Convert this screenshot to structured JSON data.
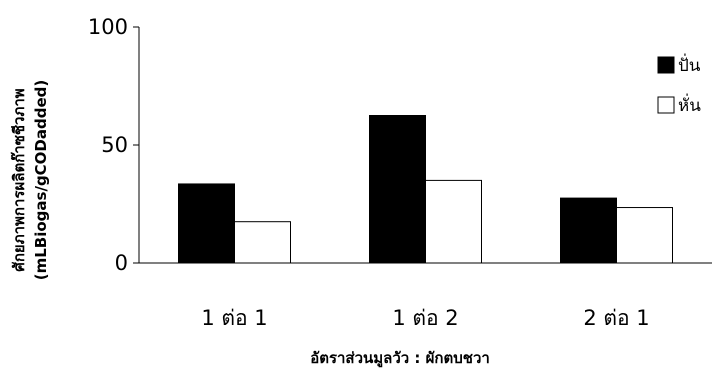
{
  "chart_data": {
    "type": "bar",
    "categories": [
      "1 ต่อ 1",
      "1 ต่อ 2",
      "2 ต่อ 1"
    ],
    "series": [
      {
        "name": "ปั่น",
        "values": [
          33.5,
          62.5,
          27.5
        ],
        "fill": "#000000",
        "stroke": "#000000"
      },
      {
        "name": "หั่น",
        "values": [
          17.5,
          35,
          23.5
        ],
        "fill": "#ffffff",
        "stroke": "#000000"
      }
    ],
    "yticks": [
      0,
      50,
      100
    ],
    "ylim": [
      0,
      100
    ],
    "xlabel": "อัตราส่วนมูลวัว : ผักตบชวา",
    "ylabel_line1": "ศักยภาพการผลิตก๊าซชีวภาพ",
    "ylabel_line2": "(mLBiogas/gCODadded)",
    "legend_position": "right",
    "grid": false
  }
}
